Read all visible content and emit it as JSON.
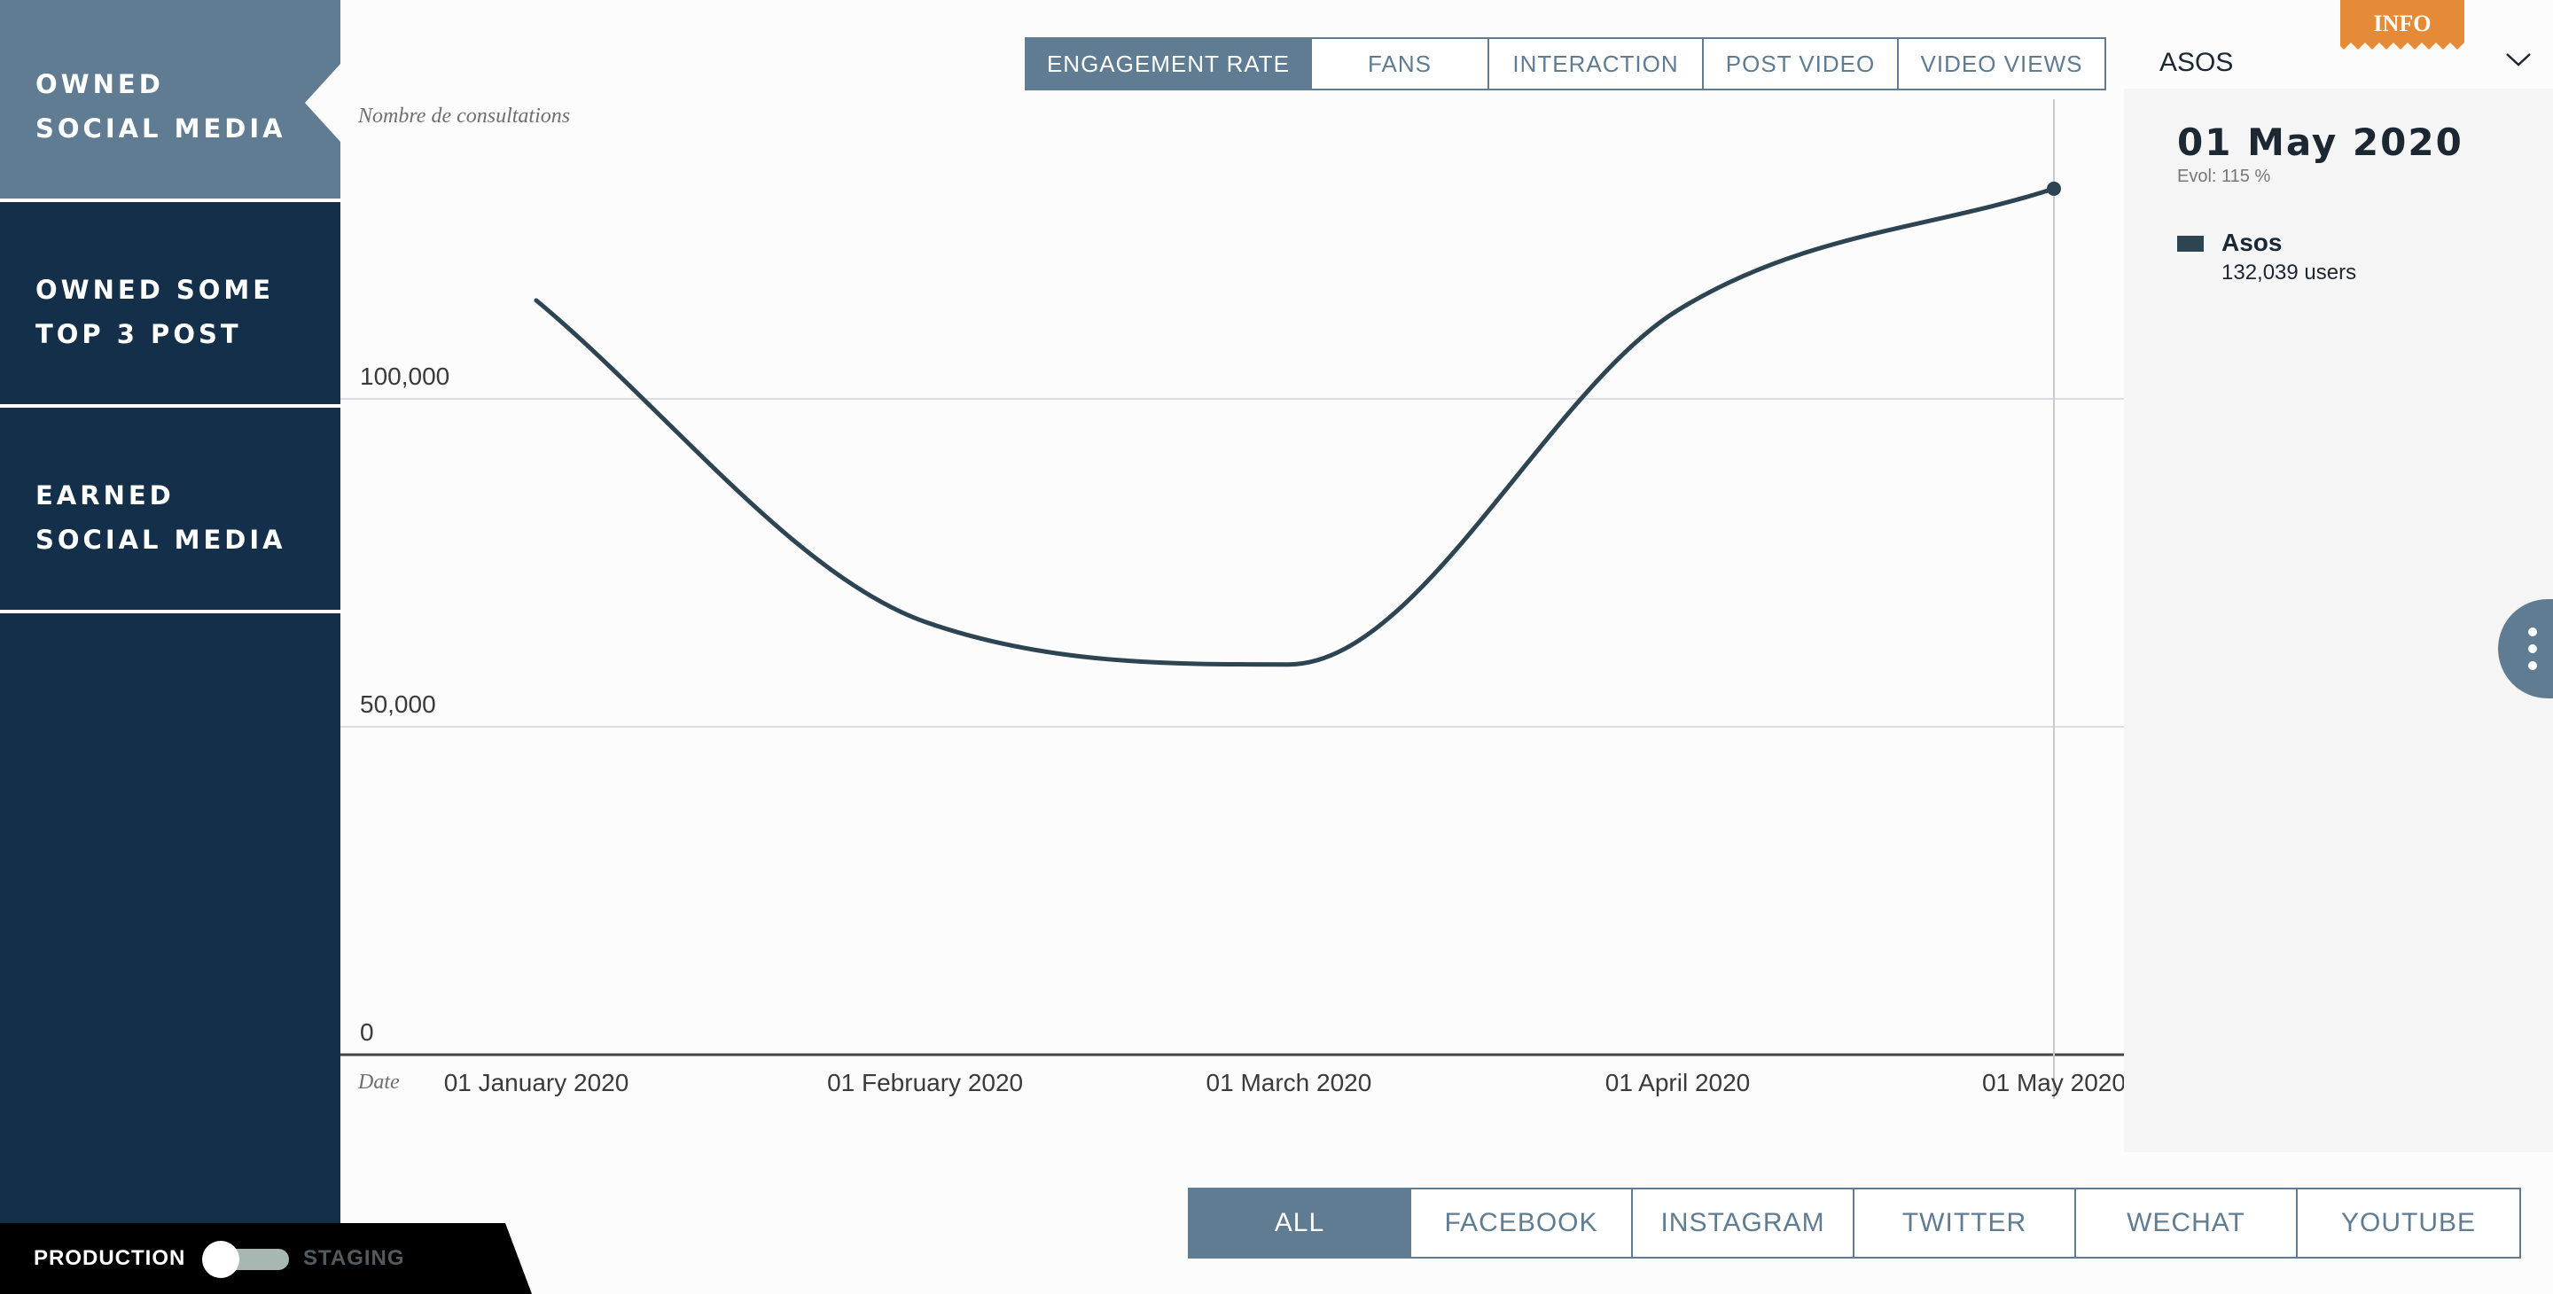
{
  "sidebar": {
    "items": [
      {
        "label": "OWNED SOCIAL MEDIA",
        "active": true
      },
      {
        "label": "OWNED SOME TOP 3 POST",
        "active": false
      },
      {
        "label": "EARNED SOCIAL MEDIA",
        "active": false
      }
    ]
  },
  "env_toggle": {
    "left_label": "PRODUCTION",
    "right_label": "STAGING",
    "selected": "PRODUCTION"
  },
  "metric_tabs": [
    "ENGAGEMENT RATE",
    "FANS",
    "INTERACTION",
    "POST VIDEO",
    "VIDEO VIEWS"
  ],
  "metric_active": "ENGAGEMENT RATE",
  "channel_tabs": [
    "ALL",
    "FACEBOOK",
    "INSTAGRAM",
    "TWITTER",
    "WECHAT",
    "YOUTUBE"
  ],
  "channel_active": "ALL",
  "info_badge": "INFO",
  "brand_select": {
    "value": "ASOS"
  },
  "tooltip": {
    "date": "01 May 2020",
    "evol": "Evol: 115 %",
    "series_name": "Asos",
    "value_text": "132,039 users"
  },
  "colors": {
    "sidebar": "#142f49",
    "accent": "#5f7c93",
    "line": "#2d4453",
    "info": "#e58b37"
  },
  "chart_data": {
    "type": "line",
    "ylabel": "Nombre de consultations",
    "xlabel": "Date",
    "x": [
      "2020-01-01",
      "2020-02-01",
      "2020-03-01",
      "2020-04-01",
      "2020-05-01"
    ],
    "x_tick_labels": [
      "01 January 2020",
      "01 February 2020",
      "01 March 2020",
      "01 April 2020",
      "01 May 2020"
    ],
    "y_ticks": [
      0,
      50000,
      100000
    ],
    "y_tick_labels": [
      "0",
      "50,000",
      "100,000"
    ],
    "ylim": [
      0,
      135000
    ],
    "series": [
      {
        "name": "Asos",
        "values": [
          115000,
          66000,
          59500,
          113500,
          132039
        ]
      }
    ],
    "highlight_x": "2020-05-01",
    "grid": true
  }
}
